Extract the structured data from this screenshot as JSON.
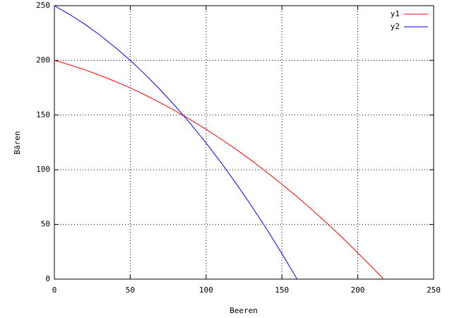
{
  "chart_data": {
    "type": "line",
    "x_label": "Beeren",
    "y_label": "Bären",
    "xlim": [
      0,
      250
    ],
    "ylim": [
      0,
      250
    ],
    "xticks": [
      0,
      50,
      100,
      150,
      200,
      250
    ],
    "yticks": [
      0,
      50,
      100,
      150,
      200,
      250
    ],
    "grid": true,
    "legend": "top-right",
    "series": [
      {
        "name": "y1",
        "color": "#ff0000",
        "x": [
          0,
          10,
          20,
          30,
          40,
          50,
          60,
          70,
          80,
          90,
          100,
          110,
          120,
          130,
          140,
          150,
          160,
          170,
          180,
          190,
          200,
          210,
          217
        ],
        "values": [
          200,
          195.9,
          191.4,
          186.3,
          180.8,
          174.8,
          168.2,
          161.1,
          153.6,
          145.5,
          137.0,
          127.9,
          118.4,
          108.4,
          97.8,
          86.8,
          75.3,
          63.2,
          50.7,
          37.7,
          24.0,
          10.1,
          0
        ]
      },
      {
        "name": "y2",
        "color": "#0000ff",
        "x": [
          0,
          10,
          20,
          30,
          40,
          50,
          60,
          70,
          80,
          90,
          100,
          110,
          120,
          130,
          140,
          150,
          160
        ],
        "values": [
          250,
          242.0,
          233.1,
          223.1,
          212.0,
          200.0,
          186.9,
          172.8,
          157.7,
          141.6,
          124.5,
          106.3,
          87.0,
          66.8,
          45.6,
          23.3,
          0
        ]
      }
    ]
  }
}
